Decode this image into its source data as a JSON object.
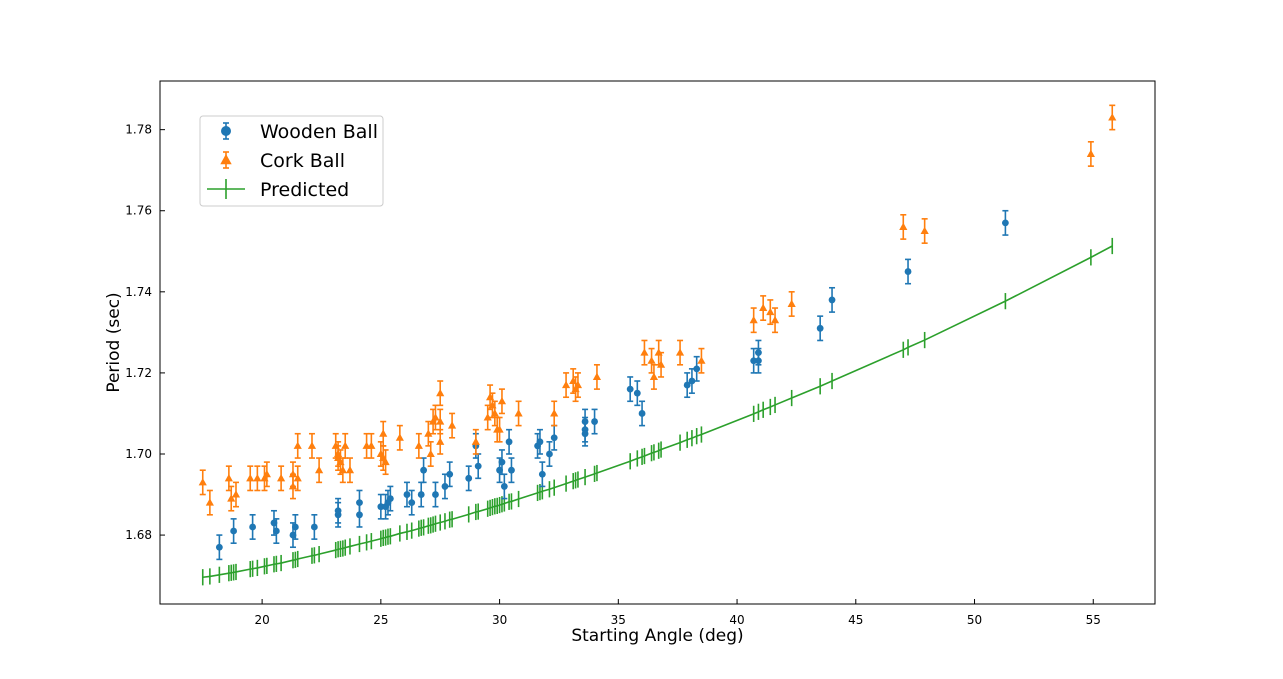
{
  "chart_data": {
    "type": "scatter",
    "title": "",
    "xlabel": "Starting Angle (deg)",
    "ylabel": "Period (sec)",
    "xlim": [
      15.7,
      57.6
    ],
    "ylim": [
      1.663,
      1.792
    ],
    "xticks": [
      20,
      25,
      30,
      35,
      40,
      45,
      50,
      55
    ],
    "yticks": [
      1.68,
      1.7,
      1.72,
      1.74,
      1.76,
      1.78
    ],
    "xtick_labels": [
      "20",
      "25",
      "30",
      "35",
      "40",
      "45",
      "50",
      "55"
    ],
    "ytick_labels": [
      "1.68",
      "1.70",
      "1.72",
      "1.74",
      "1.76",
      "1.78"
    ],
    "grid": false,
    "legend_position": "upper-left",
    "series": [
      {
        "name": "Wooden Ball",
        "marker": "circle",
        "color": "#1f77b4",
        "yerr": 0.003,
        "points": [
          [
            18.2,
            1.677
          ],
          [
            18.8,
            1.681
          ],
          [
            19.6,
            1.682
          ],
          [
            20.5,
            1.683
          ],
          [
            20.6,
            1.681
          ],
          [
            21.3,
            1.68
          ],
          [
            21.4,
            1.682
          ],
          [
            22.2,
            1.682
          ],
          [
            23.2,
            1.685
          ],
          [
            23.2,
            1.686
          ],
          [
            24.1,
            1.685
          ],
          [
            24.1,
            1.688
          ],
          [
            25.0,
            1.687
          ],
          [
            25.2,
            1.687
          ],
          [
            25.3,
            1.688
          ],
          [
            25.4,
            1.689
          ],
          [
            26.1,
            1.69
          ],
          [
            26.3,
            1.688
          ],
          [
            26.7,
            1.69
          ],
          [
            26.8,
            1.696
          ],
          [
            27.3,
            1.69
          ],
          [
            27.7,
            1.692
          ],
          [
            27.9,
            1.695
          ],
          [
            28.7,
            1.694
          ],
          [
            29.0,
            1.702
          ],
          [
            29.1,
            1.697
          ],
          [
            30.0,
            1.696
          ],
          [
            30.1,
            1.698
          ],
          [
            30.2,
            1.692
          ],
          [
            30.4,
            1.703
          ],
          [
            30.5,
            1.696
          ],
          [
            31.6,
            1.702
          ],
          [
            31.7,
            1.703
          ],
          [
            31.8,
            1.695
          ],
          [
            32.1,
            1.7
          ],
          [
            32.3,
            1.704
          ],
          [
            33.6,
            1.708
          ],
          [
            33.6,
            1.706
          ],
          [
            33.6,
            1.705
          ],
          [
            34.0,
            1.708
          ],
          [
            35.5,
            1.716
          ],
          [
            35.8,
            1.715
          ],
          [
            36.0,
            1.71
          ],
          [
            37.9,
            1.717
          ],
          [
            38.1,
            1.718
          ],
          [
            38.3,
            1.721
          ],
          [
            40.7,
            1.723
          ],
          [
            40.9,
            1.723
          ],
          [
            40.9,
            1.725
          ],
          [
            43.5,
            1.731
          ],
          [
            44.0,
            1.738
          ],
          [
            47.2,
            1.745
          ],
          [
            51.3,
            1.757
          ]
        ]
      },
      {
        "name": "Cork Ball",
        "marker": "triangle",
        "color": "#ff7f0e",
        "yerr": 0.003,
        "points": [
          [
            17.5,
            1.693
          ],
          [
            17.8,
            1.688
          ],
          [
            18.6,
            1.694
          ],
          [
            18.7,
            1.689
          ],
          [
            18.9,
            1.69
          ],
          [
            19.5,
            1.694
          ],
          [
            19.8,
            1.694
          ],
          [
            20.1,
            1.694
          ],
          [
            20.2,
            1.695
          ],
          [
            20.8,
            1.694
          ],
          [
            21.3,
            1.695
          ],
          [
            21.3,
            1.692
          ],
          [
            21.5,
            1.702
          ],
          [
            21.5,
            1.694
          ],
          [
            22.1,
            1.702
          ],
          [
            22.4,
            1.696
          ],
          [
            23.1,
            1.702
          ],
          [
            23.2,
            1.7
          ],
          [
            23.2,
            1.699
          ],
          [
            23.3,
            1.698
          ],
          [
            23.4,
            1.696
          ],
          [
            23.5,
            1.702
          ],
          [
            23.7,
            1.696
          ],
          [
            24.4,
            1.702
          ],
          [
            24.6,
            1.702
          ],
          [
            25.0,
            1.7
          ],
          [
            25.1,
            1.705
          ],
          [
            25.1,
            1.699
          ],
          [
            25.2,
            1.698
          ],
          [
            25.8,
            1.704
          ],
          [
            26.6,
            1.702
          ],
          [
            27.0,
            1.705
          ],
          [
            27.1,
            1.7
          ],
          [
            27.2,
            1.708
          ],
          [
            27.3,
            1.709
          ],
          [
            27.5,
            1.703
          ],
          [
            27.5,
            1.715
          ],
          [
            27.5,
            1.708
          ],
          [
            28.0,
            1.707
          ],
          [
            29.0,
            1.703
          ],
          [
            29.5,
            1.709
          ],
          [
            29.6,
            1.714
          ],
          [
            29.7,
            1.712
          ],
          [
            29.8,
            1.71
          ],
          [
            29.9,
            1.706
          ],
          [
            30.0,
            1.706
          ],
          [
            30.1,
            1.713
          ],
          [
            30.8,
            1.71
          ],
          [
            32.3,
            1.71
          ],
          [
            32.8,
            1.717
          ],
          [
            33.1,
            1.718
          ],
          [
            33.2,
            1.716
          ],
          [
            33.3,
            1.717
          ],
          [
            34.1,
            1.719
          ],
          [
            36.1,
            1.725
          ],
          [
            36.4,
            1.723
          ],
          [
            36.5,
            1.719
          ],
          [
            36.7,
            1.725
          ],
          [
            36.8,
            1.722
          ],
          [
            37.6,
            1.725
          ],
          [
            38.5,
            1.723
          ],
          [
            40.7,
            1.733
          ],
          [
            41.1,
            1.736
          ],
          [
            41.4,
            1.735
          ],
          [
            41.6,
            1.733
          ],
          [
            42.3,
            1.737
          ],
          [
            47.0,
            1.756
          ],
          [
            47.9,
            1.755
          ],
          [
            54.9,
            1.774
          ],
          [
            55.8,
            1.783
          ]
        ]
      },
      {
        "name": "Predicted",
        "marker": "vline",
        "color": "#2ca02c",
        "yerr": 0.002,
        "points": [
          [
            17.5,
            1.6696
          ],
          [
            17.8,
            1.6698
          ],
          [
            18.2,
            1.6702
          ],
          [
            18.6,
            1.6706
          ],
          [
            18.7,
            1.6707
          ],
          [
            18.8,
            1.6708
          ],
          [
            18.9,
            1.6709
          ],
          [
            19.5,
            1.6716
          ],
          [
            19.6,
            1.6717
          ],
          [
            19.8,
            1.6719
          ],
          [
            20.1,
            1.6723
          ],
          [
            20.2,
            1.6724
          ],
          [
            20.5,
            1.6728
          ],
          [
            20.6,
            1.6729
          ],
          [
            20.8,
            1.6731
          ],
          [
            21.3,
            1.6738
          ],
          [
            21.4,
            1.6739
          ],
          [
            21.5,
            1.6741
          ],
          [
            22.1,
            1.6749
          ],
          [
            22.2,
            1.675
          ],
          [
            22.4,
            1.6753
          ],
          [
            23.1,
            1.6763
          ],
          [
            23.2,
            1.6765
          ],
          [
            23.3,
            1.6766
          ],
          [
            23.4,
            1.6767
          ],
          [
            23.5,
            1.6769
          ],
          [
            23.7,
            1.6772
          ],
          [
            24.1,
            1.6778
          ],
          [
            24.4,
            1.6782
          ],
          [
            24.6,
            1.6785
          ],
          [
            25.0,
            1.6791
          ],
          [
            25.1,
            1.6793
          ],
          [
            25.2,
            1.6794
          ],
          [
            25.3,
            1.6796
          ],
          [
            25.4,
            1.6797
          ],
          [
            25.8,
            1.6804
          ],
          [
            26.1,
            1.6808
          ],
          [
            26.3,
            1.6811
          ],
          [
            26.6,
            1.6816
          ],
          [
            26.7,
            1.6818
          ],
          [
            26.8,
            1.6819
          ],
          [
            27.0,
            1.6823
          ],
          [
            27.1,
            1.6824
          ],
          [
            27.2,
            1.6826
          ],
          [
            27.3,
            1.6828
          ],
          [
            27.5,
            1.6831
          ],
          [
            27.7,
            1.6834
          ],
          [
            27.9,
            1.6838
          ],
          [
            28.0,
            1.6839
          ],
          [
            28.7,
            1.6851
          ],
          [
            29.0,
            1.6857
          ],
          [
            29.1,
            1.6858
          ],
          [
            29.5,
            1.6865
          ],
          [
            29.6,
            1.6867
          ],
          [
            29.7,
            1.6869
          ],
          [
            29.8,
            1.6871
          ],
          [
            29.9,
            1.6872
          ],
          [
            30.0,
            1.6874
          ],
          [
            30.1,
            1.6876
          ],
          [
            30.2,
            1.6878
          ],
          [
            30.4,
            1.6882
          ],
          [
            30.5,
            1.6883
          ],
          [
            30.8,
            1.6889
          ],
          [
            31.6,
            1.6904
          ],
          [
            31.7,
            1.6906
          ],
          [
            31.8,
            1.6908
          ],
          [
            32.1,
            1.6913
          ],
          [
            32.3,
            1.6917
          ],
          [
            32.8,
            1.6927
          ],
          [
            33.1,
            1.6933
          ],
          [
            33.2,
            1.6935
          ],
          [
            33.3,
            1.6937
          ],
          [
            33.6,
            1.6943
          ],
          [
            34.0,
            1.6951
          ],
          [
            34.1,
            1.6953
          ],
          [
            35.5,
            1.6982
          ],
          [
            35.8,
            1.6989
          ],
          [
            36.0,
            1.6993
          ],
          [
            36.1,
            1.6995
          ],
          [
            36.4,
            1.7002
          ],
          [
            36.5,
            1.7004
          ],
          [
            36.7,
            1.7008
          ],
          [
            36.8,
            1.7011
          ],
          [
            37.6,
            1.7028
          ],
          [
            37.9,
            1.7035
          ],
          [
            38.1,
            1.7039
          ],
          [
            38.3,
            1.7044
          ],
          [
            38.5,
            1.7048
          ],
          [
            40.7,
            1.7099
          ],
          [
            40.9,
            1.7104
          ],
          [
            41.1,
            1.7109
          ],
          [
            41.4,
            1.7116
          ],
          [
            41.6,
            1.7121
          ],
          [
            42.3,
            1.7138
          ],
          [
            43.5,
            1.7167
          ],
          [
            44.0,
            1.718
          ],
          [
            47.0,
            1.7257
          ],
          [
            47.2,
            1.7263
          ],
          [
            47.9,
            1.7281
          ],
          [
            51.3,
            1.7377
          ],
          [
            54.9,
            1.7485
          ],
          [
            55.8,
            1.7513
          ]
        ]
      }
    ]
  }
}
